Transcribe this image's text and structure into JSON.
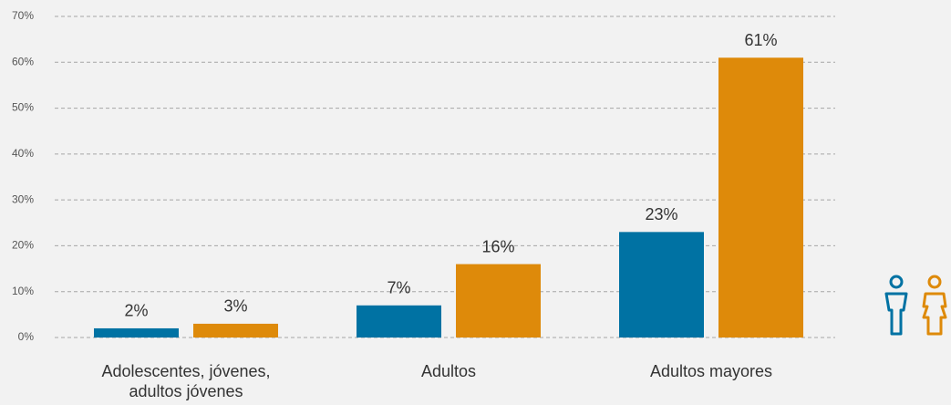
{
  "chart_data": {
    "type": "bar",
    "categories": [
      "Adolescentes, jóvenes, adultos jóvenes",
      "Adultos",
      "Adultos mayores"
    ],
    "series": [
      {
        "color": "#0072a3",
        "values": [
          2,
          7,
          23
        ],
        "value_labels": [
          "2%",
          "7%",
          "23%"
        ]
      },
      {
        "color": "#de8a0a",
        "values": [
          3,
          16,
          61
        ],
        "value_labels": [
          "3%",
          "16%",
          "61%"
        ]
      }
    ],
    "ylim": [
      0,
      70
    ],
    "yticks": [
      {
        "value": 0,
        "label": "0%"
      },
      {
        "value": 10,
        "label": "10%"
      },
      {
        "value": 20,
        "label": "20%"
      },
      {
        "value": 30,
        "label": "30%"
      },
      {
        "value": 40,
        "label": "40%"
      },
      {
        "value": 50,
        "label": "50%"
      },
      {
        "value": 60,
        "label": "60%"
      },
      {
        "value": 70,
        "label": "70%"
      }
    ],
    "grid": true
  }
}
